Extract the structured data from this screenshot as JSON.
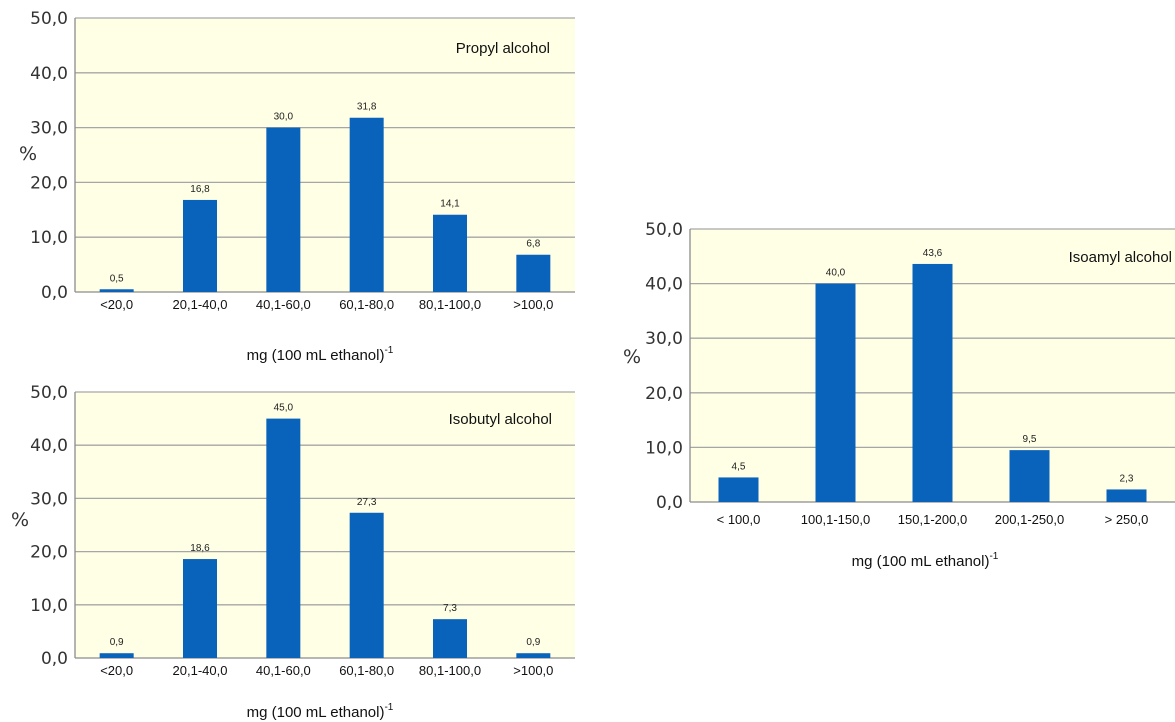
{
  "chart_data": [
    {
      "type": "bar",
      "title": "Propyl alcohol",
      "ylabel": "%",
      "xlabel": "mg (100 mL ethanol)",
      "xlabel_sup": "-1",
      "ylim": [
        0,
        50
      ],
      "yticks": [
        "0,0",
        "10,0",
        "20,0",
        "30,0",
        "40,0",
        "50,0"
      ],
      "categories": [
        "<20,0",
        "20,1-40,0",
        "40,1-60,0",
        "60,1-80,0",
        "80,1-100,0",
        ">100,0"
      ],
      "values": [
        0.5,
        16.8,
        30.0,
        31.8,
        14.1,
        6.8
      ],
      "value_labels": [
        "0,5",
        "16,8",
        "30,0",
        "31,8",
        "14,1",
        "6,8"
      ],
      "grid": true,
      "bar_color": "#0a63bb",
      "plot_background": "#ffffe6"
    },
    {
      "type": "bar",
      "title": "Isobutyl alcohol",
      "ylabel": "%",
      "xlabel": "mg (100 mL ethanol)",
      "xlabel_sup": "-1",
      "ylim": [
        0,
        50
      ],
      "yticks": [
        "0,0",
        "10,0",
        "20,0",
        "30,0",
        "40,0",
        "50,0"
      ],
      "categories": [
        "<20,0",
        "20,1-40,0",
        "40,1-60,0",
        "60,1-80,0",
        "80,1-100,0",
        ">100,0"
      ],
      "values": [
        0.9,
        18.6,
        45.0,
        27.3,
        7.3,
        0.9
      ],
      "value_labels": [
        "0,9",
        "18,6",
        "45,0",
        "27,3",
        "7,3",
        "0,9"
      ],
      "grid": true,
      "bar_color": "#0a63bb",
      "plot_background": "#ffffe6"
    },
    {
      "type": "bar",
      "title": "Isoamyl alcohol",
      "ylabel": "%",
      "xlabel": "mg (100 mL ethanol)",
      "xlabel_sup": "-1",
      "ylim": [
        0,
        50
      ],
      "yticks": [
        "0,0",
        "10,0",
        "20,0",
        "30,0",
        "40,0",
        "50,0"
      ],
      "categories": [
        "< 100,0",
        "100,1-150,0",
        "150,1-200,0",
        "200,1-250,0",
        "> 250,0"
      ],
      "values": [
        4.5,
        40.0,
        43.6,
        9.5,
        2.3
      ],
      "value_labels": [
        "4,5",
        "40,0",
        "43,6",
        "9,5",
        "2,3"
      ],
      "grid": true,
      "bar_color": "#0a63bb",
      "plot_background": "#ffffe6"
    }
  ]
}
